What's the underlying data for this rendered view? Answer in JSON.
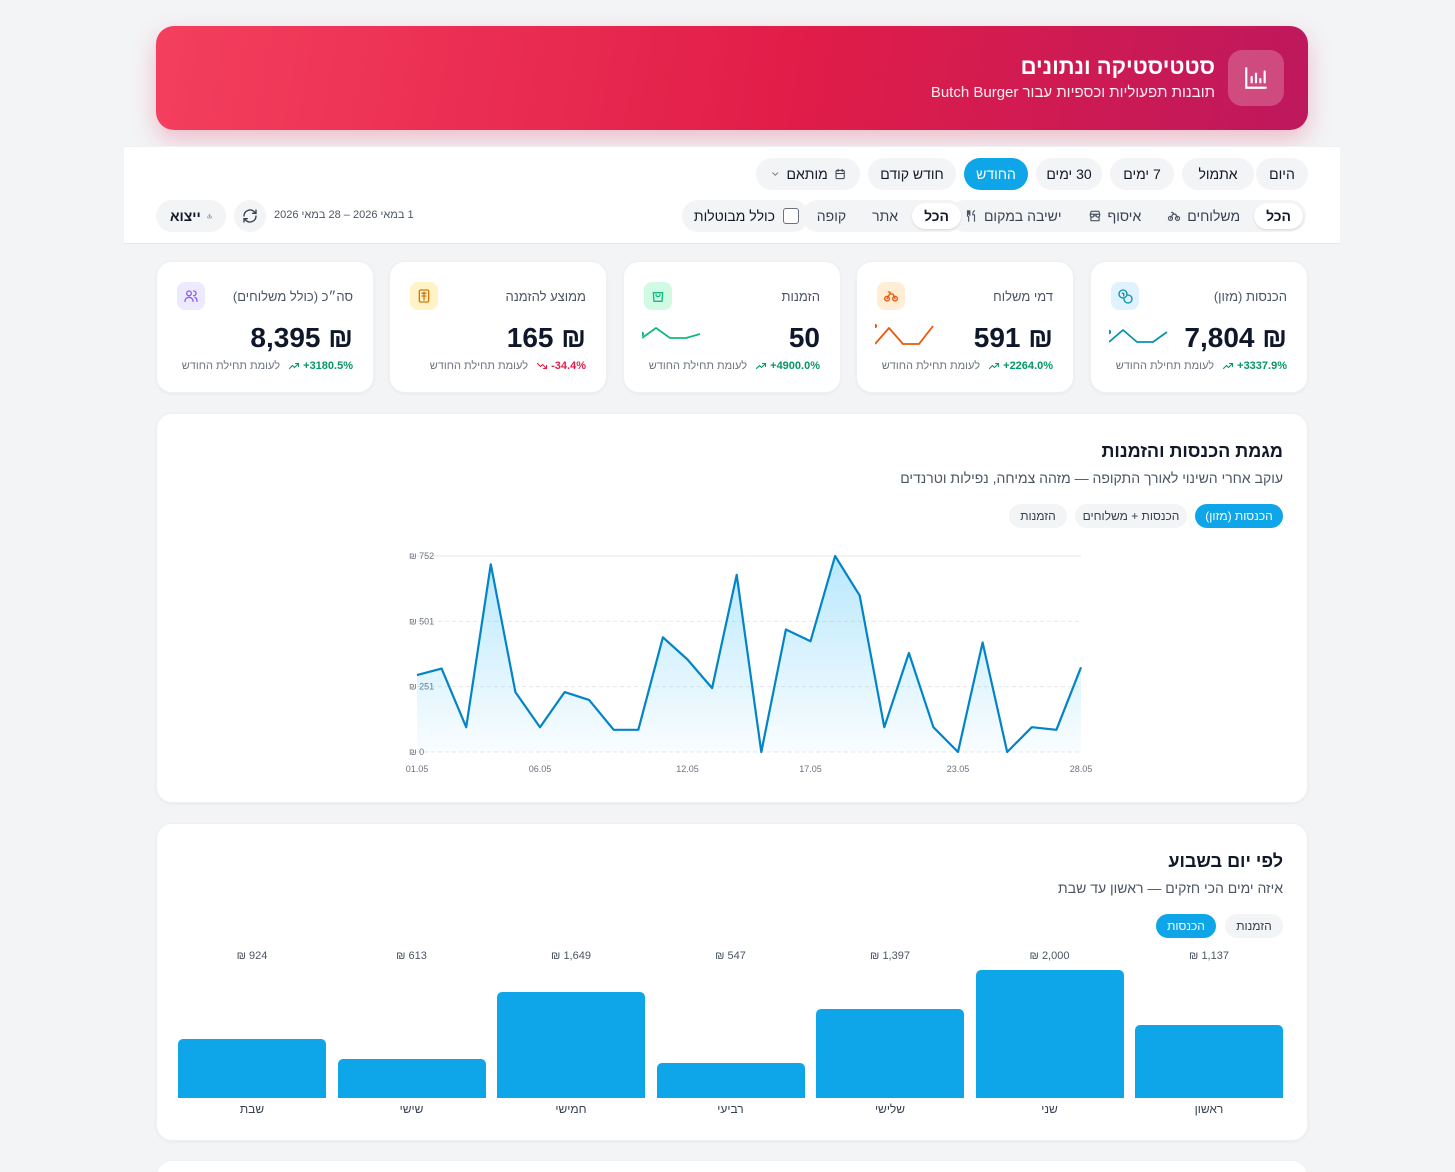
{
  "breadcrumb": "",
  "header": {
    "title": "סטטיסטיקה ונתונים",
    "subtitle": "תובנות תפעוליות וכספיות עבור Butch Burger",
    "icon": "bar-chart-icon"
  },
  "period_chips": [
    {
      "label": "היום",
      "active": false
    },
    {
      "label": "אתמול",
      "active": false
    },
    {
      "label": "7 ימים",
      "active": false
    },
    {
      "label": "30 ימים",
      "active": false
    },
    {
      "label": "החודש",
      "active": true
    },
    {
      "label": "חודש קודם",
      "active": false
    },
    {
      "label": "מותאם",
      "active": false
    }
  ],
  "order_type_filter": [
    {
      "label": "הכל",
      "active": true,
      "icon": ""
    },
    {
      "label": "משלוחים",
      "active": false,
      "icon": "bike-icon"
    },
    {
      "label": "איסוף",
      "active": false,
      "icon": "store-icon"
    },
    {
      "label": "ישיבה במקום",
      "active": false,
      "icon": "utensils-icon"
    }
  ],
  "source_filter": [
    {
      "label": "הכל",
      "active": true
    },
    {
      "label": "אתר",
      "active": false
    },
    {
      "label": "קופה",
      "active": false
    }
  ],
  "include_cancelled": {
    "label": "כולל מבוטלות",
    "checked": false
  },
  "date_range": "1 במאי 2026 – 28 במאי 2026",
  "export_label": "ייצוא",
  "kpis": [
    {
      "label": "הכנסות (מזון)",
      "value": "7,804 ₪",
      "delta": "+3337.9%",
      "direction": "up",
      "foot": "לעומת תחילת החודש",
      "color": "#0891b2",
      "icon_bg": "#e0f2fe",
      "icon": "coins-icon"
    },
    {
      "label": "דמי משלוח",
      "value": "591 ₪",
      "delta": "+2264.0%",
      "direction": "up",
      "foot": "לעומת תחילת החודש",
      "color": "#ea580c",
      "icon_bg": "#ffedd5",
      "icon": "bike-icon"
    },
    {
      "label": "הזמנות",
      "value": "50",
      "delta": "+4900.0%",
      "direction": "up",
      "foot": "לעומת תחילת החודש",
      "color": "#10b981",
      "icon_bg": "#d1fae5",
      "icon": "shopping-bag-icon"
    },
    {
      "label": "ממוצע להזמנה",
      "value": "165 ₪",
      "delta": "-34.4%",
      "direction": "down",
      "foot": "לעומת תחילת החודש",
      "color": "#d97706",
      "icon_bg": "#fef3c7",
      "icon": "receipt-icon"
    },
    {
      "label": "סה״כ (כולל משלוחים)",
      "value": "8,395 ₪",
      "delta": "+3180.5%",
      "direction": "up",
      "foot": "לעומת תחילת החודש",
      "color": "#8b5cf6",
      "icon_bg": "#ede9fe",
      "icon": "users-icon"
    }
  ],
  "trend": {
    "title": "מגמת הכנסות והזמנות",
    "subtitle": "עוקב אחרי השינוי לאורך התקופה — מזהה צמיחה, נפילות וטרנדים",
    "toggles": [
      {
        "label": "הכנסות (מזון)",
        "active": true
      },
      {
        "label": "הכנסות + משלוחים",
        "active": false
      },
      {
        "label": "הזמנות",
        "active": false
      }
    ]
  },
  "weekday": {
    "title": "לפי יום בשבוע",
    "subtitle": "איזה ימים הכי חזקים — ראשון עד שבת",
    "toggles": [
      {
        "label": "הכנסות",
        "active": true
      },
      {
        "label": "הזמנות",
        "active": false
      }
    ]
  },
  "chart_data": [
    {
      "type": "area",
      "title": "",
      "xlabel": "",
      "ylabel": "",
      "x": [
        "01.05",
        "02.05",
        "03.05",
        "04.05",
        "05.05",
        "06.05",
        "07.05",
        "08.05",
        "09.05",
        "10.05",
        "11.05",
        "12.05",
        "13.05",
        "14.05",
        "15.05",
        "16.05",
        "17.05",
        "18.05",
        "19.05",
        "20.05",
        "21.05",
        "22.05",
        "23.05",
        "24.05",
        "25.05",
        "26.05",
        "27.05",
        "28.05"
      ],
      "x_tick_labels": [
        "01.05",
        "06.05",
        "12.05",
        "17.05",
        "23.05",
        "28.05"
      ],
      "y_tick_labels": [
        "0 ₪",
        "251 ₪",
        "501 ₪",
        "752 ₪"
      ],
      "ylim": [
        0,
        752
      ],
      "grid": true,
      "series": [
        {
          "name": "הכנסות (מזון)",
          "values": [
            295,
            320,
            95,
            720,
            230,
            95,
            230,
            200,
            85,
            85,
            440,
            355,
            245,
            680,
            0,
            470,
            425,
            752,
            600,
            95,
            380,
            95,
            0,
            420,
            0,
            95,
            85,
            325
          ]
        }
      ],
      "color": "#0284c7"
    },
    {
      "type": "bar",
      "title": "",
      "categories": [
        "ראשון",
        "שני",
        "שלישי",
        "רביעי",
        "חמישי",
        "שישי",
        "שבת"
      ],
      "values": [
        1137,
        2000,
        1397,
        547,
        1649,
        613,
        924
      ],
      "value_labels": [
        "1,137 ₪",
        "2,000 ₪",
        "1,397 ₪",
        "547 ₪",
        "1,649 ₪",
        "613 ₪",
        "924 ₪"
      ],
      "ylim": [
        0,
        2000
      ],
      "color": "#0ea5e9"
    }
  ]
}
